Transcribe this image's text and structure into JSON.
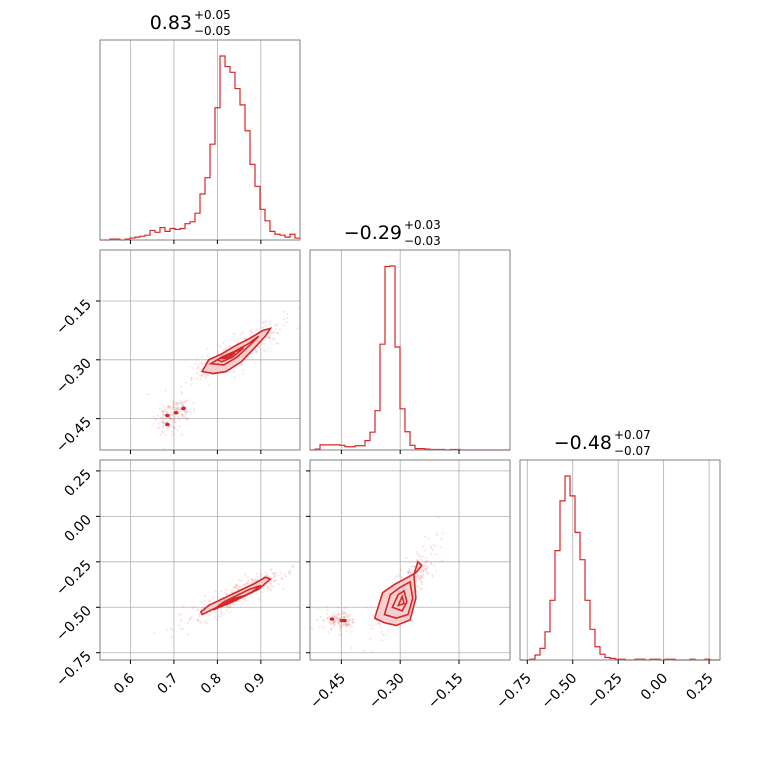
{
  "chart_data": {
    "type": "corner",
    "color": "#d62728",
    "fill_color": "#f4cccc",
    "grid": true,
    "titles": [
      {
        "value": "0.83",
        "plus": "+0.05",
        "minus": "−0.05"
      },
      {
        "value": "−0.29",
        "plus": "+0.03",
        "minus": "−0.03"
      },
      {
        "value": "−0.48",
        "plus": "+0.07",
        "minus": "−0.07"
      }
    ],
    "ranges": [
      [
        0.53,
        0.99
      ],
      [
        -0.53,
        -0.02
      ],
      [
        -0.79,
        0.31
      ]
    ],
    "ticks": {
      "p0": {
        "values": [
          0.6,
          0.7,
          0.8,
          0.9
        ],
        "labels": [
          "0.6",
          "0.7",
          "0.8",
          "0.9"
        ]
      },
      "p1": {
        "values": [
          -0.45,
          -0.3,
          -0.15
        ],
        "labels": [
          "−0.45",
          "−0.30",
          "−0.15"
        ]
      },
      "p2": {
        "values": [
          -0.75,
          -0.5,
          -0.25,
          0.0,
          0.25
        ],
        "labels": [
          "−0.75",
          "−0.50",
          "−0.25",
          "0.00",
          "0.25"
        ]
      }
    },
    "hist1d": [
      {
        "param": 0,
        "edges": [
          0.53,
          0.5415,
          0.553,
          0.5645,
          0.576,
          0.5875,
          0.599,
          0.6105,
          0.622,
          0.6335,
          0.645,
          0.6565,
          0.668,
          0.6795,
          0.691,
          0.7025,
          0.714,
          0.7255,
          0.737,
          0.7485,
          0.76,
          0.7715,
          0.783,
          0.7945,
          0.806,
          0.8175,
          0.829,
          0.8405,
          0.852,
          0.8635,
          0.875,
          0.8865,
          0.898,
          0.9095,
          0.921,
          0.9325,
          0.944,
          0.9555,
          0.967,
          0.9785,
          0.99
        ],
        "counts": [
          0,
          0,
          1,
          1,
          0,
          1,
          2,
          3,
          4,
          5,
          10,
          8,
          13,
          9,
          12,
          11,
          12,
          17,
          19,
          28,
          48,
          65,
          100,
          138,
          192,
          181,
          175,
          158,
          141,
          114,
          79,
          56,
          32,
          20,
          9,
          6,
          5,
          3,
          6,
          2
        ]
      },
      {
        "param": 1,
        "edges": [
          -0.53,
          -0.5172,
          -0.5045,
          -0.4918,
          -0.479,
          -0.4662,
          -0.4535,
          -0.4408,
          -0.428,
          -0.4152,
          -0.4025,
          -0.3898,
          -0.377,
          -0.3642,
          -0.3515,
          -0.3388,
          -0.326,
          -0.3132,
          -0.3005,
          -0.2878,
          -0.275,
          -0.2622,
          -0.2495,
          -0.2368,
          -0.224,
          -0.2112,
          -0.1985,
          -0.1858,
          -0.173,
          -0.1602,
          -0.1475,
          -0.1348,
          -0.122,
          -0.1092,
          -0.0965,
          -0.0838,
          -0.071,
          -0.0582,
          -0.0455,
          -0.0328,
          -0.02
        ],
        "counts": [
          0,
          2,
          11,
          11,
          11,
          11,
          10,
          7,
          7,
          9,
          9,
          20,
          38,
          84,
          226,
          392,
          393,
          220,
          88,
          39,
          10,
          3,
          3,
          2,
          1,
          1,
          1,
          0,
          1,
          1,
          0,
          0,
          0,
          0,
          0,
          0,
          0,
          0,
          0,
          0
        ]
      },
      {
        "param": 2,
        "edges": [
          -0.79,
          -0.7625,
          -0.735,
          -0.7075,
          -0.68,
          -0.6525,
          -0.625,
          -0.5975,
          -0.57,
          -0.5425,
          -0.515,
          -0.4875,
          -0.46,
          -0.4325,
          -0.405,
          -0.3775,
          -0.35,
          -0.3225,
          -0.295,
          -0.2675,
          -0.24,
          -0.2125,
          -0.185,
          -0.1575,
          -0.13,
          -0.1025,
          -0.075,
          -0.0475,
          -0.02,
          0.0075,
          0.035,
          0.0625,
          0.09,
          0.1175,
          0.145,
          0.1725,
          0.2,
          0.2275,
          0.255,
          0.2825,
          0.31
        ],
        "counts": [
          0,
          0,
          1,
          6,
          14,
          34,
          72,
          132,
          192,
          222,
          198,
          154,
          121,
          72,
          37,
          16,
          7,
          3,
          2,
          1,
          1,
          0,
          0,
          1,
          1,
          0,
          1,
          1,
          0,
          1,
          1,
          0,
          0,
          0,
          1,
          0,
          0,
          1,
          0,
          0
        ]
      }
    ],
    "hist2d": [
      {
        "x_param": 0,
        "y_param": 1,
        "contours": [
          [
            [
              0.765,
              -0.33
            ],
            [
              0.78,
              -0.3
            ],
            [
              0.81,
              -0.285
            ],
            [
              0.84,
              -0.265
            ],
            [
              0.875,
              -0.245
            ],
            [
              0.905,
              -0.225
            ],
            [
              0.922,
              -0.22
            ],
            [
              0.91,
              -0.24
            ],
            [
              0.885,
              -0.27
            ],
            [
              0.855,
              -0.305
            ],
            [
              0.82,
              -0.33
            ],
            [
              0.79,
              -0.335
            ]
          ],
          [
            [
              0.785,
              -0.31
            ],
            [
              0.81,
              -0.293
            ],
            [
              0.84,
              -0.278
            ],
            [
              0.87,
              -0.26
            ],
            [
              0.895,
              -0.24
            ],
            [
              0.875,
              -0.262
            ],
            [
              0.845,
              -0.293
            ],
            [
              0.815,
              -0.313
            ]
          ],
          [
            [
              0.8,
              -0.3
            ],
            [
              0.83,
              -0.285
            ],
            [
              0.86,
              -0.27
            ],
            [
              0.835,
              -0.293
            ],
            [
              0.81,
              -0.305
            ]
          ],
          [
            [
              0.81,
              -0.297
            ],
            [
              0.84,
              -0.283
            ],
            [
              0.826,
              -0.295
            ]
          ]
        ],
        "blobs": [
          [
            0.685,
            -0.442
          ],
          [
            0.685,
            -0.465
          ],
          [
            0.705,
            -0.435
          ],
          [
            0.722,
            -0.424
          ]
        ]
      },
      {
        "x_param": 0,
        "y_param": 2,
        "contours": [
          [
            [
              0.765,
              -0.54
            ],
            [
              0.79,
              -0.51
            ],
            [
              0.825,
              -0.475
            ],
            [
              0.86,
              -0.44
            ],
            [
              0.895,
              -0.4
            ],
            [
              0.922,
              -0.345
            ],
            [
              0.91,
              -0.335
            ],
            [
              0.885,
              -0.37
            ],
            [
              0.85,
              -0.41
            ],
            [
              0.815,
              -0.45
            ],
            [
              0.78,
              -0.49
            ],
            [
              0.762,
              -0.525
            ]
          ],
          [
            [
              0.79,
              -0.515
            ],
            [
              0.82,
              -0.482
            ],
            [
              0.85,
              -0.45
            ],
            [
              0.88,
              -0.415
            ],
            [
              0.9,
              -0.38
            ],
            [
              0.875,
              -0.4
            ],
            [
              0.845,
              -0.435
            ],
            [
              0.815,
              -0.47
            ]
          ],
          [
            [
              0.805,
              -0.5
            ],
            [
              0.835,
              -0.47
            ],
            [
              0.865,
              -0.435
            ],
            [
              0.84,
              -0.45
            ],
            [
              0.815,
              -0.48
            ]
          ],
          [
            [
              0.82,
              -0.485
            ],
            [
              0.848,
              -0.455
            ],
            [
              0.83,
              -0.465
            ]
          ]
        ],
        "blobs": []
      },
      {
        "x_param": 1,
        "y_param": 2,
        "contours": [
          [
            [
              -0.365,
              -0.56
            ],
            [
              -0.345,
              -0.42
            ],
            [
              -0.315,
              -0.375
            ],
            [
              -0.285,
              -0.34
            ],
            [
              -0.26,
              -0.31
            ],
            [
              -0.245,
              -0.27
            ],
            [
              -0.255,
              -0.25
            ],
            [
              -0.265,
              -0.32
            ],
            [
              -0.26,
              -0.45
            ],
            [
              -0.275,
              -0.57
            ],
            [
              -0.31,
              -0.6
            ],
            [
              -0.34,
              -0.585
            ]
          ],
          [
            [
              -0.34,
              -0.54
            ],
            [
              -0.325,
              -0.43
            ],
            [
              -0.3,
              -0.39
            ],
            [
              -0.275,
              -0.36
            ],
            [
              -0.268,
              -0.45
            ],
            [
              -0.28,
              -0.54
            ],
            [
              -0.31,
              -0.56
            ]
          ],
          [
            [
              -0.32,
              -0.5
            ],
            [
              -0.305,
              -0.43
            ],
            [
              -0.29,
              -0.41
            ],
            [
              -0.283,
              -0.47
            ],
            [
              -0.295,
              -0.52
            ]
          ],
          [
            [
              -0.305,
              -0.49
            ],
            [
              -0.295,
              -0.44
            ],
            [
              -0.29,
              -0.48
            ]
          ]
        ],
        "blobs": [
          [
            -0.474,
            -0.565
          ],
          [
            -0.448,
            -0.573
          ],
          [
            -0.442,
            -0.573
          ]
        ]
      }
    ]
  }
}
